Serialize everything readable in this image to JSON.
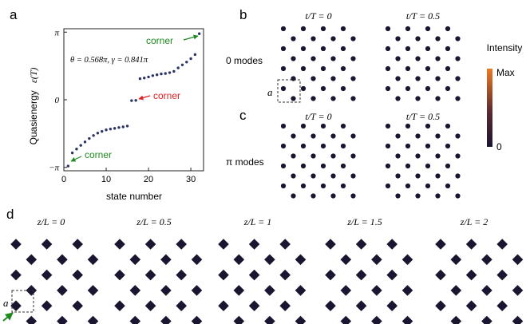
{
  "panels": {
    "a": {
      "label": "a",
      "ylabel": "Quasienergy",
      "ylabel_symbol": "ε(T)",
      "xlabel": "state number",
      "params": "θ = 0.568π, γ = 0.841π",
      "annotations": {
        "corner_top": "corner",
        "corner_mid": "corner",
        "corner_bottom": "corner"
      }
    },
    "b": {
      "label": "b",
      "row_label": "0 modes",
      "time_labels": [
        "t/T = 0",
        "t/T = 0.5"
      ],
      "cell_label": "a"
    },
    "c": {
      "label": "c",
      "row_label": "π modes",
      "time_labels": [
        "t/T = 0",
        "t/T = 0.5"
      ]
    },
    "d": {
      "label": "d",
      "z_labels": [
        "z/L = 0",
        "z/L = 0.5",
        "z/L = 1",
        "z/L = 1.5",
        "z/L = 2"
      ],
      "cell_label": "a"
    },
    "colorbar": {
      "title": "Intensity",
      "max_label": "Max",
      "min_label": "0"
    }
  },
  "colors": {
    "dark": "#1a1530",
    "orange": "#ef7a22",
    "red_annotation": "#e02020",
    "green_annotation": "#1e8a1e",
    "marker": "#2a3566"
  },
  "chart_data": {
    "type": "scatter",
    "xlabel": "state number",
    "ylabel": "Quasienergy ε(T)",
    "xlim": [
      0,
      33
    ],
    "ylim": [
      -3.3,
      3.3
    ],
    "xticks": [
      "0",
      "10",
      "20",
      "30"
    ],
    "yticks": [
      "−π",
      "0",
      "π"
    ],
    "x": [
      1,
      2,
      3,
      4,
      5,
      6,
      7,
      8,
      9,
      10,
      11,
      12,
      13,
      14,
      15,
      16,
      17,
      18,
      19,
      20,
      21,
      22,
      23,
      24,
      25,
      26,
      27,
      28,
      29,
      30,
      31,
      32
    ],
    "values": [
      -3.08,
      -2.47,
      -2.29,
      -2.12,
      -1.96,
      -1.8,
      -1.66,
      -1.55,
      -1.47,
      -1.4,
      -1.36,
      -1.33,
      -1.29,
      -1.26,
      -1.22,
      -0.04,
      -0.03,
      0.98,
      1.01,
      1.06,
      1.12,
      1.16,
      1.2,
      1.22,
      1.26,
      1.32,
      1.48,
      1.62,
      1.75,
      1.91,
      2.1,
      3.07
    ]
  }
}
